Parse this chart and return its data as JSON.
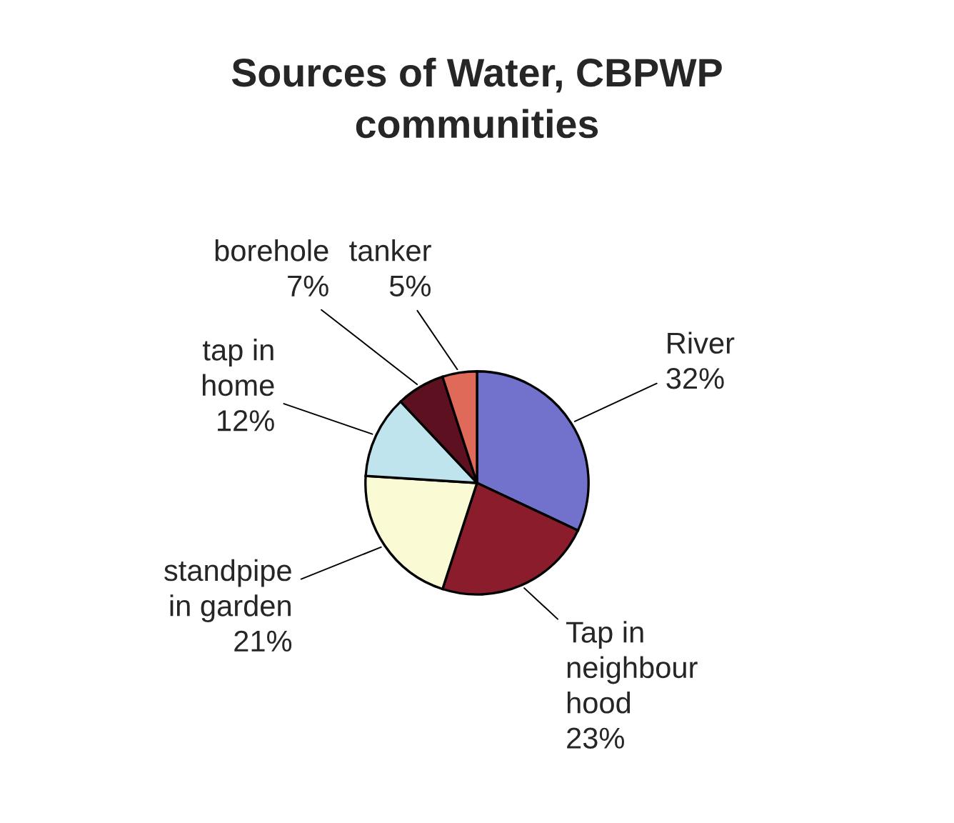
{
  "chart_data": {
    "type": "pie",
    "title": "Sources of Water, CBPWP\ncommunities",
    "categories": [
      "River",
      "Tap in\nneighbour\nhood",
      "standpipe\nin garden",
      "tap in\nhome",
      "borehole",
      "tanker"
    ],
    "values": [
      32,
      23,
      21,
      12,
      7,
      5
    ],
    "value_labels": [
      "32%",
      "23%",
      "21%",
      "12%",
      "7%",
      "5%"
    ],
    "colors": [
      "#7272cc",
      "#8b1c2c",
      "#fafad4",
      "#c0e4ee",
      "#5c1020",
      "#e06a5a"
    ],
    "legend": false
  }
}
